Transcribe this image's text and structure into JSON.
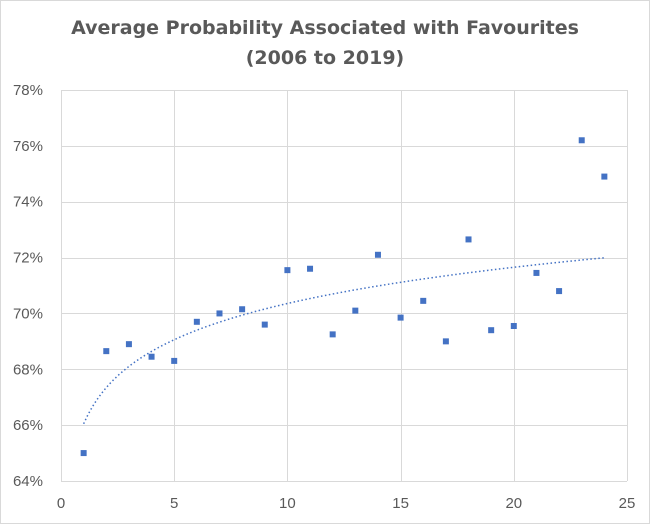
{
  "chart_data": {
    "type": "scatter",
    "title": "Average Probability Associated with Favourites",
    "subtitle": "(2006 to 2019)",
    "xlabel": "",
    "ylabel": "",
    "xlim": [
      0,
      25
    ],
    "ylim": [
      0.64,
      0.78
    ],
    "x_ticks": [
      "0",
      "5",
      "10",
      "15",
      "20",
      "25"
    ],
    "y_ticks": [
      "64%",
      "66%",
      "68%",
      "70%",
      "72%",
      "74%",
      "76%",
      "78%"
    ],
    "grid": true,
    "legend": "none",
    "marker_color": "#4472C4",
    "trendline": {
      "type": "logarithmic",
      "style": "dotted",
      "color": "#4472C4",
      "points": [
        {
          "x": 1,
          "y": 0.66
        },
        {
          "x": 3,
          "y": 0.682
        },
        {
          "x": 10,
          "y": 0.703
        },
        {
          "x": 24,
          "y": 0.72
        }
      ]
    },
    "points": [
      {
        "x": 1,
        "y": 0.65
      },
      {
        "x": 2,
        "y": 0.6865
      },
      {
        "x": 3,
        "y": 0.689
      },
      {
        "x": 4,
        "y": 0.6845
      },
      {
        "x": 5,
        "y": 0.683
      },
      {
        "x": 6,
        "y": 0.697
      },
      {
        "x": 7,
        "y": 0.7
      },
      {
        "x": 8,
        "y": 0.7015
      },
      {
        "x": 9,
        "y": 0.696
      },
      {
        "x": 10,
        "y": 0.7155
      },
      {
        "x": 11,
        "y": 0.716
      },
      {
        "x": 12,
        "y": 0.6925
      },
      {
        "x": 13,
        "y": 0.701
      },
      {
        "x": 14,
        "y": 0.721
      },
      {
        "x": 15,
        "y": 0.6985
      },
      {
        "x": 16,
        "y": 0.7045
      },
      {
        "x": 17,
        "y": 0.69
      },
      {
        "x": 18,
        "y": 0.7265
      },
      {
        "x": 19,
        "y": 0.694
      },
      {
        "x": 20,
        "y": 0.6955
      },
      {
        "x": 21,
        "y": 0.7145
      },
      {
        "x": 22,
        "y": 0.708
      },
      {
        "x": 23,
        "y": 0.762
      },
      {
        "x": 24,
        "y": 0.749
      }
    ]
  }
}
